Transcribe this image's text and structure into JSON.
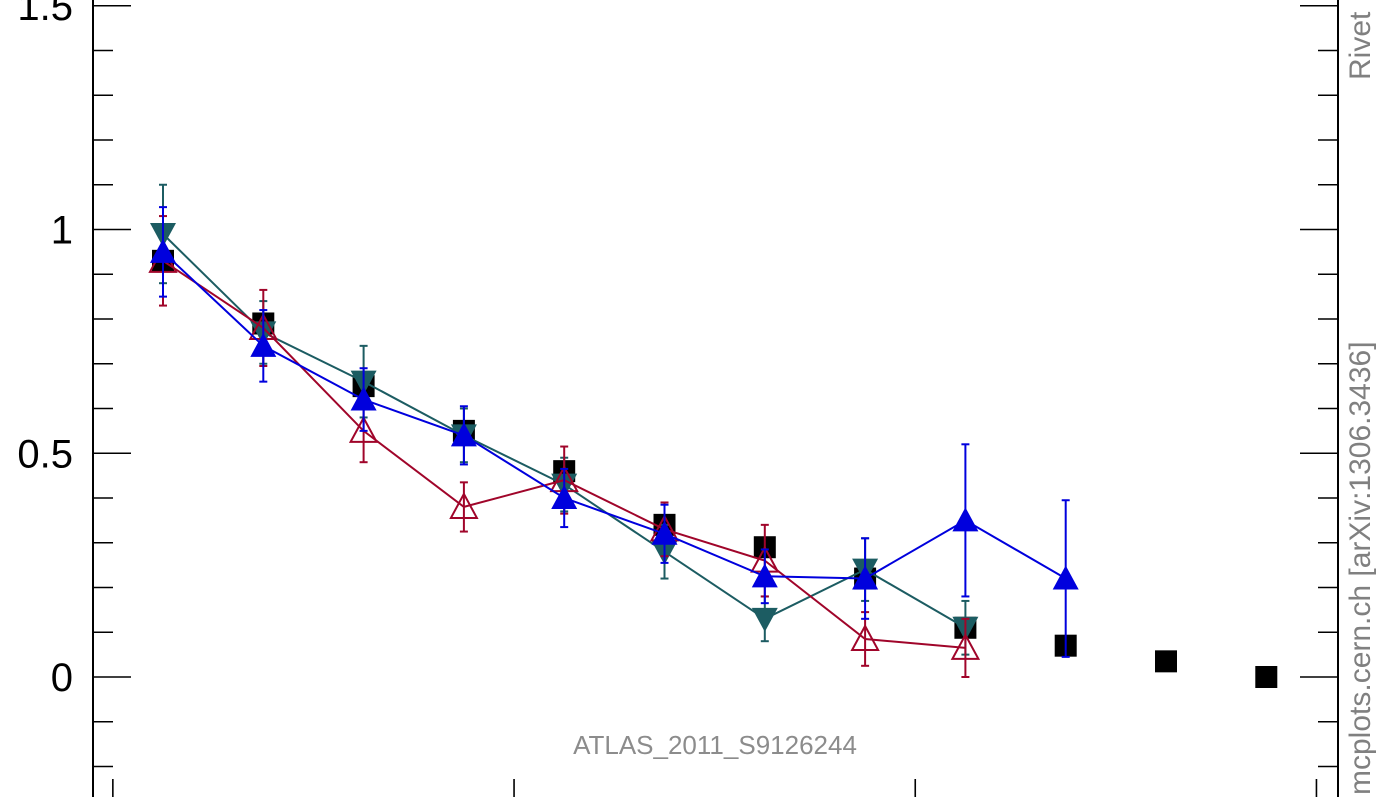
{
  "chart_data": {
    "type": "scatter",
    "ylim": [
      -0.25,
      1.5
    ],
    "xlim": [
      0.5,
      12.5
    ],
    "x": [
      1,
      2,
      3,
      4,
      5,
      6,
      7,
      8,
      9,
      10,
      11,
      12
    ],
    "y_ticks_major": [
      {
        "value": 0,
        "label": "0"
      },
      {
        "value": 0.5,
        "label": "0.5"
      },
      {
        "value": 1,
        "label": "1"
      },
      {
        "value": 1.5,
        "label": "1.5"
      }
    ],
    "y_ticks_minor": [
      -0.2,
      -0.1,
      0.1,
      0.2,
      0.3,
      0.4,
      0.6,
      0.7,
      0.8,
      0.9,
      1.1,
      1.2,
      1.3,
      1.4
    ],
    "x_ticks": [
      0.5,
      4.5,
      8.5,
      12.5
    ],
    "grid": false,
    "annotation": "ATLAS_2011_S9126244",
    "side_labels": {
      "rivet": "Rivet",
      "mcplots": "mcplots.cern.ch [arXiv:1306.3436]"
    },
    "series": [
      {
        "color": "#000000",
        "marker": "square",
        "line": false,
        "x": [
          1,
          2,
          3,
          4,
          5,
          6,
          7,
          8,
          9,
          10,
          11,
          12
        ],
        "y": [
          0.93,
          0.79,
          0.65,
          0.55,
          0.46,
          0.34,
          0.29,
          0.22,
          0.11,
          0.07,
          0.035,
          0.0
        ]
      },
      {
        "color": "#1c5c62",
        "marker": "triangle-down",
        "line": true,
        "x": [
          1,
          2,
          3,
          4,
          5,
          6,
          7,
          8,
          9
        ],
        "y": [
          0.99,
          0.77,
          0.66,
          0.54,
          0.43,
          0.28,
          0.13,
          0.24,
          0.11
        ],
        "err": [
          0.11,
          0.07,
          0.08,
          0.06,
          0.06,
          0.06,
          0.05,
          0.07,
          0.06
        ]
      },
      {
        "color": "#a0052a",
        "marker": "triangle-up-open",
        "line": true,
        "x": [
          1,
          2,
          3,
          4,
          5,
          6,
          7,
          8,
          9
        ],
        "y": [
          0.93,
          0.78,
          0.55,
          0.38,
          0.44,
          0.33,
          0.26,
          0.085,
          0.065
        ],
        "err": [
          0.1,
          0.085,
          0.07,
          0.055,
          0.075,
          0.06,
          0.08,
          0.06,
          0.065
        ]
      },
      {
        "color": "#0000dd",
        "marker": "triangle-up",
        "line": true,
        "x": [
          1,
          2,
          3,
          4,
          5,
          6,
          7,
          8,
          9,
          10
        ],
        "y": [
          0.95,
          0.74,
          0.62,
          0.54,
          0.4,
          0.32,
          0.225,
          0.22,
          0.35,
          0.22
        ],
        "err": [
          0.1,
          0.08,
          0.07,
          0.065,
          0.065,
          0.065,
          0.06,
          0.09,
          0.17,
          0.175
        ]
      }
    ]
  }
}
